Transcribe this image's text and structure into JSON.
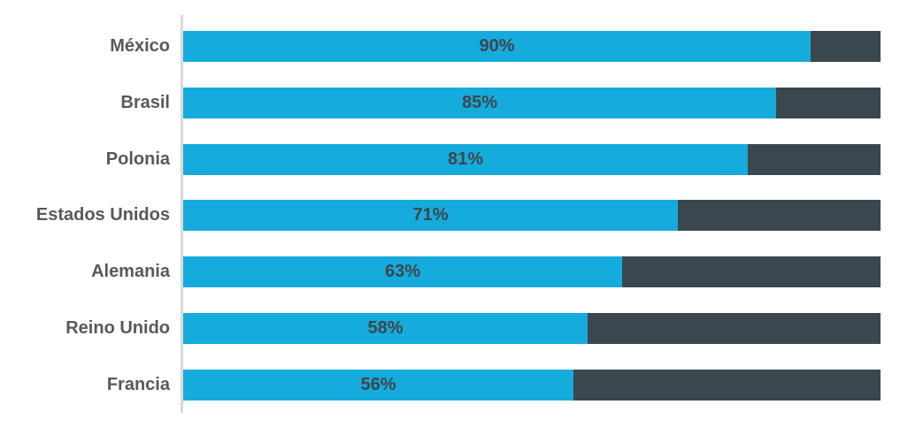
{
  "chart_data": {
    "type": "bar",
    "orientation": "horizontal",
    "stacked": true,
    "title": "",
    "xlabel": "",
    "ylabel": "",
    "xlim": [
      0,
      100
    ],
    "grid": false,
    "legend": "none",
    "categories": [
      "México",
      "Brasil",
      "Polonia",
      "Estados Unidos",
      "Alemania",
      "Reino Unido",
      "Francia"
    ],
    "series": [
      {
        "name": "porcentaje",
        "values": [
          90,
          85,
          81,
          71,
          63,
          58,
          56
        ],
        "color": "#15ABDC"
      },
      {
        "name": "resto",
        "values": [
          10,
          15,
          19,
          29,
          37,
          42,
          44
        ],
        "color": "#3A474F"
      }
    ],
    "value_labels": [
      "90%",
      "85%",
      "81%",
      "71%",
      "63%",
      "58%",
      "56%"
    ]
  },
  "colors": {
    "background": "#FFFFFF",
    "bar_primary": "#15ABDC",
    "bar_remainder": "#3A474F",
    "axis_line": "#D9D9D9",
    "category_label": "#595959",
    "value_label": "#3E464D"
  }
}
